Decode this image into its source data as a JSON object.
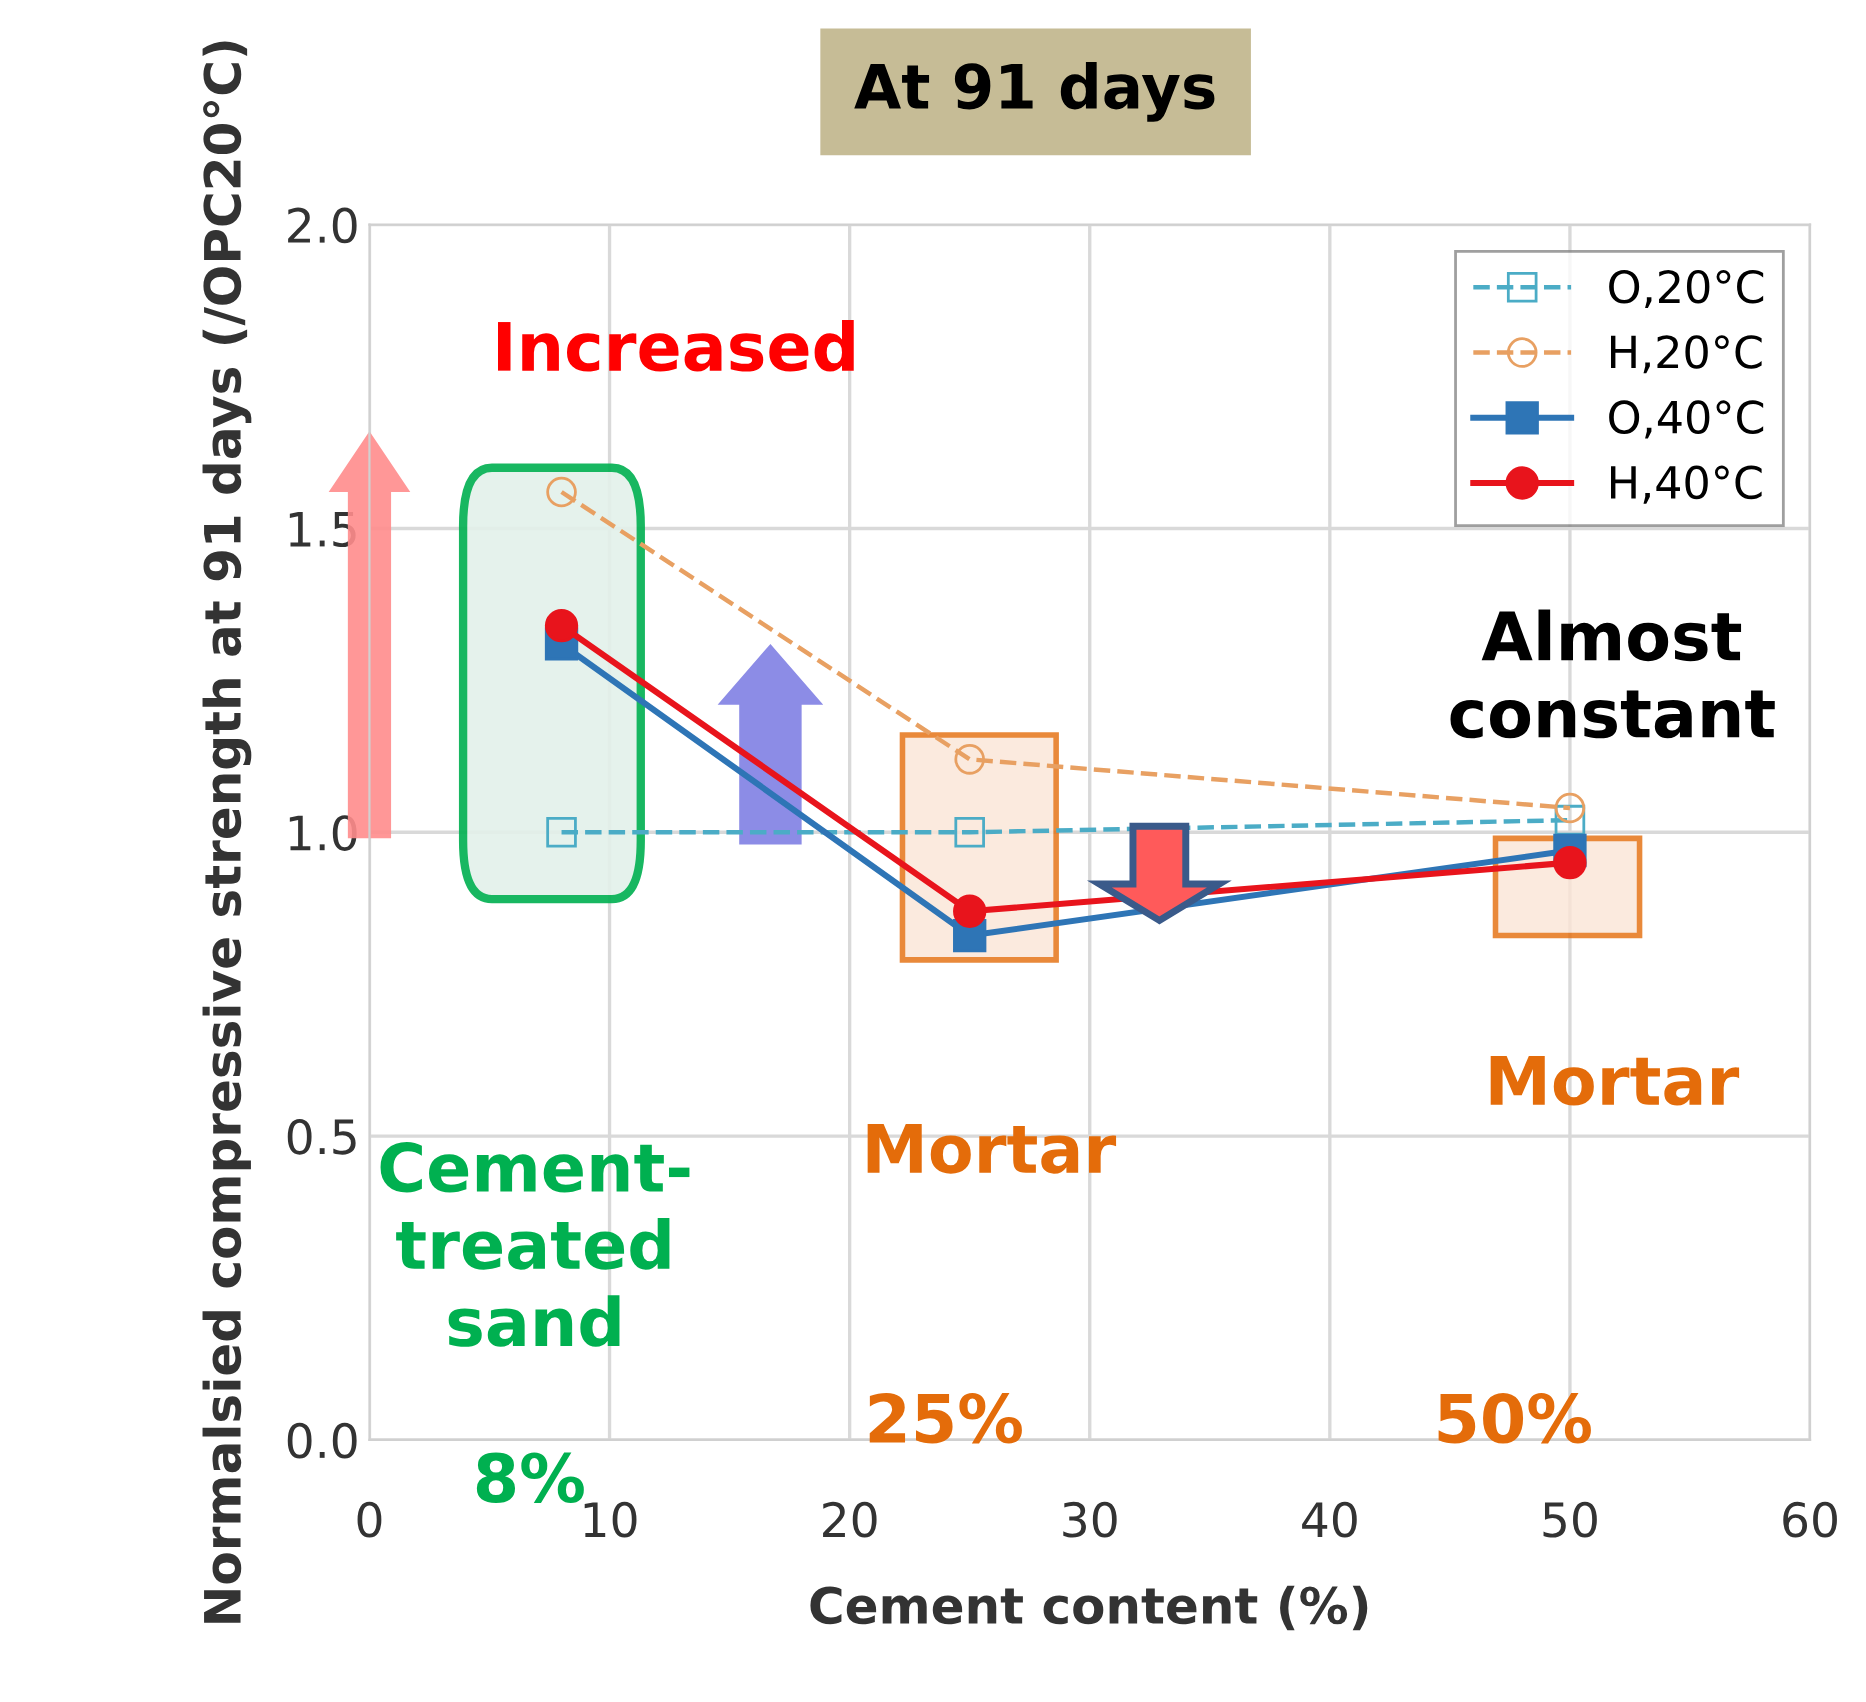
{
  "chart_data": {
    "type": "line",
    "title": "At 91 days",
    "xlabel": "Cement content (%)",
    "ylabel": "Normalsied compressive strength at 91 days (/OPC20°C)",
    "x": [
      8,
      25,
      50
    ],
    "series": [
      {
        "name": "O,20°C",
        "color": "#4bacc6",
        "values": [
          1.0,
          1.0,
          1.02
        ],
        "marker": "square",
        "line_style": "dashed"
      },
      {
        "name": "H,20°C",
        "color": "#e8a062",
        "values": [
          1.56,
          1.12,
          1.04
        ],
        "marker": "circle",
        "line_style": "dashed"
      },
      {
        "name": "O,40°C",
        "color": "#2e75b6",
        "values": [
          1.31,
          0.83,
          0.97
        ],
        "marker": "square",
        "line_style": "solid"
      },
      {
        "name": "H,40°C",
        "color": "#e8141c",
        "values": [
          1.34,
          0.87,
          0.95
        ],
        "marker": "circle",
        "line_style": "solid"
      }
    ],
    "xlim": [
      0,
      60
    ],
    "xticks": [
      0,
      10,
      20,
      30,
      40,
      50,
      60
    ],
    "ylim": [
      0.0,
      2.0
    ],
    "yticks": [
      {
        "value": 0,
        "label": "0.0"
      },
      {
        "value": 0.5,
        "label": "0.5"
      },
      {
        "value": 1.0,
        "label": "1.0"
      },
      {
        "value": 1.5,
        "label": "1.5"
      },
      {
        "value": 2.0,
        "label": "2.0"
      }
    ],
    "grid": true,
    "legend": "top right",
    "annotations": [
      "Increased",
      "Almost\nconstant",
      "Cement-\ntreated\nsand",
      "8%",
      "Mortar",
      "25%",
      "Mortar",
      "50%"
    ]
  }
}
